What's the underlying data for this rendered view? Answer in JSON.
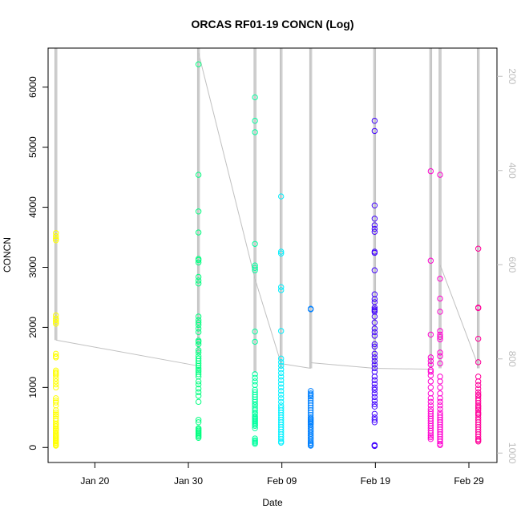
{
  "chart_data": {
    "type": "scatter",
    "title": "ORCAS RF01-19 CONCN (Log)",
    "xlabel": "Date",
    "ylabel": "CONCN",
    "x_ticks": [
      {
        "date": "2016-01-20",
        "label": "Jan 20"
      },
      {
        "date": "2016-01-30",
        "label": "Jan 30"
      },
      {
        "date": "2016-02-09",
        "label": "Feb 09"
      },
      {
        "date": "2016-02-19",
        "label": "Feb 19"
      },
      {
        "date": "2016-02-29",
        "label": "Feb 29"
      }
    ],
    "xlim": [
      "2016-01-15",
      "2016-03-03"
    ],
    "y_ticks": [
      0,
      1000,
      2000,
      3000,
      4000,
      5000,
      6000
    ],
    "ylim": [
      -250,
      6650
    ],
    "y2_ticks": [
      200,
      400,
      600,
      800,
      1000
    ],
    "y2lim": [
      1020,
      140
    ],
    "y2_color": "#bdbdbd",
    "grid": false,
    "flights": [
      {
        "date": "2016-01-15T20:00",
        "color": "#ffff00",
        "values": [
          3570,
          3520,
          3480,
          3450,
          2200,
          2150,
          2120,
          2090,
          2060,
          1560,
          1520,
          1500,
          1280,
          1250,
          1230,
          1200,
          1150,
          1100,
          1050,
          1000,
          820,
          780,
          750,
          700,
          620,
          580,
          550,
          520,
          480,
          440,
          400,
          380,
          350,
          320,
          300,
          280,
          250,
          220,
          200,
          180,
          160,
          140,
          120,
          100,
          80,
          60,
          40,
          30
        ]
      },
      {
        "date": "2016-01-31T02:00",
        "color": "#00ff80",
        "values": [
          6380,
          4540,
          3930,
          3580,
          3140,
          3120,
          3080,
          2840,
          2780,
          2730,
          2180,
          2120,
          2080,
          2040,
          1980,
          1920,
          1780,
          1760,
          1720,
          1620,
          1580,
          1520,
          1480,
          1440,
          1400,
          1360,
          1320,
          1290,
          1260,
          1220,
          1180,
          1100,
          1050,
          980,
          920,
          860,
          760,
          460,
          420,
          320,
          300,
          280,
          260,
          240,
          220,
          200,
          180,
          160
        ]
      },
      {
        "date": "2016-02-06T03:00",
        "color": "#00ff9f",
        "values": [
          5830,
          5440,
          5250,
          3390,
          3030,
          2990,
          2950,
          1930,
          1760,
          1220,
          1160,
          1100,
          1040,
          960,
          920,
          880,
          840,
          800,
          760,
          720,
          700,
          660,
          620,
          580,
          560,
          520,
          500,
          480,
          460,
          440,
          420,
          400,
          380,
          360,
          320,
          150,
          120,
          100,
          80,
          60
        ]
      },
      {
        "date": "2016-02-08T22:00",
        "color": "#00f0ff",
        "values": [
          4180,
          3260,
          3230,
          2670,
          2620,
          1940,
          1480,
          1420,
          1360,
          1300,
          1240,
          1180,
          1120,
          1060,
          1000,
          940,
          880,
          820,
          760,
          700,
          660,
          620,
          580,
          540,
          500,
          460,
          420,
          380,
          340,
          300,
          260,
          220,
          180,
          140,
          100,
          80
        ]
      },
      {
        "date": "2016-02-12T02:00",
        "color": "#0080ff",
        "values": [
          2310,
          2300,
          940,
          900,
          880,
          850,
          820,
          780,
          740,
          700,
          660,
          620,
          580,
          540,
          500,
          480,
          460,
          440,
          420,
          400,
          380,
          350,
          320,
          290,
          260,
          230,
          200,
          170,
          140,
          110,
          80,
          60,
          40,
          30
        ]
      },
      {
        "date": "2016-02-18T22:00",
        "color": "#4000ff",
        "values": [
          5440,
          5270,
          4030,
          3810,
          3700,
          3640,
          3590,
          3260,
          3240,
          2950,
          2550,
          2470,
          2420,
          2330,
          2300,
          2280,
          2260,
          2180,
          2080,
          1980,
          1920,
          1860,
          1720,
          1680,
          1560,
          1500,
          1440,
          1380,
          1320,
          1260,
          1180,
          1120,
          1060,
          1000,
          960,
          900,
          840,
          780,
          720,
          680,
          560,
          500,
          460,
          420,
          40,
          35,
          30,
          25
        ]
      },
      {
        "date": "2016-02-24T22:00",
        "color": "#ff00d0",
        "values": [
          4600,
          3110,
          1880,
          1500,
          1440,
          1380,
          1290,
          1260,
          1200,
          1100,
          1000,
          900,
          820,
          760,
          700,
          640,
          600,
          560,
          520,
          480,
          440,
          400,
          360,
          320,
          280,
          240,
          200,
          170,
          140
        ]
      },
      {
        "date": "2016-02-25T22:00",
        "color": "#ff00d0",
        "values": [
          4540,
          2810,
          2480,
          2260,
          1940,
          1880,
          1840,
          1800,
          1580,
          1520,
          1400,
          1180,
          1100,
          1000,
          900,
          820,
          760,
          700,
          640,
          580,
          540,
          500,
          460,
          420,
          380,
          340,
          300,
          260,
          220,
          180,
          140,
          100,
          60,
          40
        ]
      },
      {
        "date": "2016-03-01T00:00",
        "color": "#ff0099",
        "values": [
          3310,
          2330,
          2320,
          1810,
          1420,
          1180,
          1100,
          1040,
          980,
          920,
          880,
          860,
          820,
          780,
          740,
          700,
          680,
          650,
          620,
          580,
          560,
          540,
          500,
          460,
          420,
          380,
          340,
          300,
          260,
          220,
          180,
          140,
          120,
          100
        ]
      }
    ],
    "altitude_track": {
      "color": "#c0c0c0",
      "segments": [
        {
          "date": "2016-01-15T20:00",
          "top": 140,
          "bottom": 760
        },
        {
          "date": "2016-01-31T02:00",
          "top": 140,
          "bottom": 790
        },
        {
          "date": "2016-02-06T03:00",
          "top": 140,
          "bottom": 830
        },
        {
          "date": "2016-02-08T22:00",
          "top": 140,
          "bottom": 820
        },
        {
          "date": "2016-02-12T02:00",
          "top": 140,
          "bottom": 820
        },
        {
          "date": "2016-02-18T22:00",
          "top": 140,
          "bottom": 820
        },
        {
          "date": "2016-02-24T22:00",
          "top": 140,
          "bottom": 820
        },
        {
          "date": "2016-02-25T22:00",
          "top": 140,
          "bottom": 820
        },
        {
          "date": "2016-03-01T00:00",
          "top": 140,
          "bottom": 820
        }
      ],
      "connectors": [
        {
          "from": {
            "date": "2016-01-15T20:00",
            "y2": 760
          },
          "to": {
            "date": "2016-01-31T02:00",
            "y2": 815
          }
        },
        {
          "from": {
            "date": "2016-01-31T02:00",
            "y2": 150
          },
          "to": {
            "date": "2016-02-06T03:00",
            "y2": 630
          }
        },
        {
          "from": {
            "date": "2016-02-06T03:00",
            "y2": 630
          },
          "to": {
            "date": "2016-02-08T22:00",
            "y2": 810
          }
        },
        {
          "from": {
            "date": "2016-02-08T22:00",
            "y2": 810
          },
          "to": {
            "date": "2016-02-12T02:00",
            "y2": 820
          }
        },
        {
          "from": {
            "date": "2016-02-12T02:00",
            "y2": 808
          },
          "to": {
            "date": "2016-02-18T22:00",
            "y2": 820
          }
        },
        {
          "from": {
            "date": "2016-02-18T22:00",
            "y2": 820
          },
          "to": {
            "date": "2016-02-24T22:00",
            "y2": 822
          }
        },
        {
          "from": {
            "date": "2016-02-25T22:00",
            "y2": 600
          },
          "to": {
            "date": "2016-03-01T00:00",
            "y2": 815
          }
        }
      ]
    }
  }
}
